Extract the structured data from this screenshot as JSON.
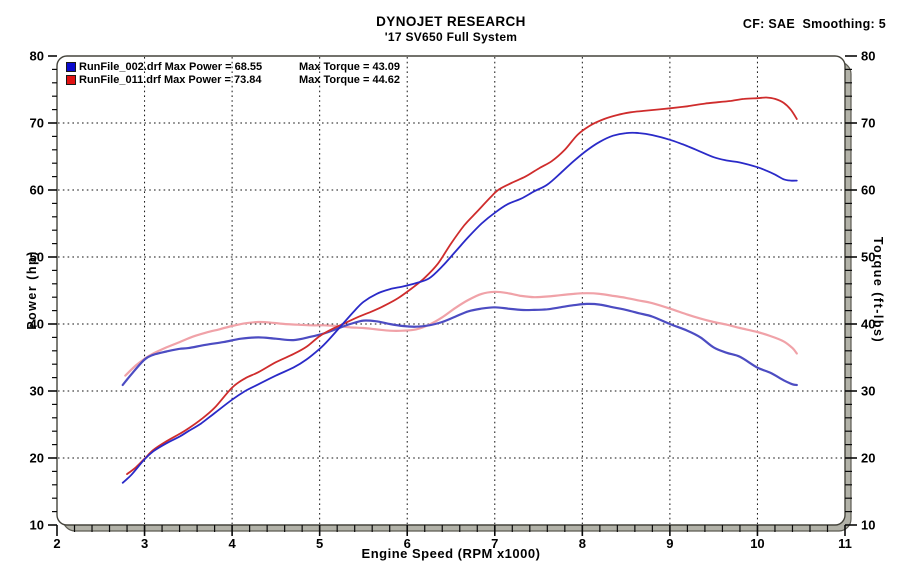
{
  "header": {
    "cf_smoothing": "CF: SAE  Smoothing: 5"
  },
  "chart_data": {
    "type": "line",
    "title": "DYNOJET RESEARCH",
    "subtitle": "'17 SV650 Full System",
    "xlabel": "Engine Speed (RPM x1000)",
    "ylabel_left": "Power (hp)",
    "ylabel_right": "Torque (ft-lbs)",
    "xlim": [
      2,
      11
    ],
    "ylim": [
      10,
      80
    ],
    "x_ticks": [
      2,
      3,
      4,
      5,
      6,
      7,
      8,
      9,
      10,
      11
    ],
    "y_ticks": [
      10,
      20,
      30,
      40,
      50,
      60,
      70,
      80
    ],
    "x_minor_step": 0.2,
    "y_minor_step": 2,
    "grid": "dotted",
    "legend_position": "top-left",
    "legend": [
      {
        "swatch": "#0a0acf",
        "label_left": "RunFile_002.drf Max Power = 68.55",
        "label_right": "Max Torque = 43.09",
        "max_power": 68.55,
        "max_torque": 43.09
      },
      {
        "swatch": "#e01212",
        "label_left": "RunFile_011.drf Max Power = 73.84",
        "label_right": "Max Torque = 44.62",
        "max_power": 73.84,
        "max_torque": 44.62
      }
    ],
    "series": [
      {
        "key": "curve-runfile011-torque",
        "name": "RunFile_011 Torque (ft-lbs)",
        "color": "#f0a2a8",
        "width": 2.2,
        "axis": "right",
        "points": [
          [
            2.78,
            32.3
          ],
          [
            2.9,
            33.8
          ],
          [
            3.0,
            34.8
          ],
          [
            3.1,
            35.6
          ],
          [
            3.25,
            36.5
          ],
          [
            3.4,
            37.3
          ],
          [
            3.55,
            38.1
          ],
          [
            3.7,
            38.7
          ],
          [
            3.85,
            39.2
          ],
          [
            4.0,
            39.7
          ],
          [
            4.15,
            40.1
          ],
          [
            4.3,
            40.3
          ],
          [
            4.45,
            40.2
          ],
          [
            4.6,
            40.0
          ],
          [
            4.75,
            39.9
          ],
          [
            4.9,
            39.8
          ],
          [
            5.05,
            39.8
          ],
          [
            5.2,
            39.7
          ],
          [
            5.35,
            39.5
          ],
          [
            5.5,
            39.4
          ],
          [
            5.65,
            39.2
          ],
          [
            5.8,
            39.0
          ],
          [
            5.95,
            39.0
          ],
          [
            6.1,
            39.2
          ],
          [
            6.25,
            39.9
          ],
          [
            6.4,
            41.0
          ],
          [
            6.55,
            42.4
          ],
          [
            6.7,
            43.6
          ],
          [
            6.85,
            44.5
          ],
          [
            7.0,
            44.8
          ],
          [
            7.15,
            44.6
          ],
          [
            7.3,
            44.2
          ],
          [
            7.45,
            44.0
          ],
          [
            7.6,
            44.1
          ],
          [
            7.75,
            44.3
          ],
          [
            7.9,
            44.5
          ],
          [
            8.05,
            44.6
          ],
          [
            8.2,
            44.5
          ],
          [
            8.35,
            44.2
          ],
          [
            8.5,
            43.9
          ],
          [
            8.65,
            43.5
          ],
          [
            8.8,
            43.1
          ],
          [
            9.0,
            42.3
          ],
          [
            9.2,
            41.4
          ],
          [
            9.35,
            40.8
          ],
          [
            9.5,
            40.3
          ],
          [
            9.65,
            39.9
          ],
          [
            9.8,
            39.4
          ],
          [
            10.0,
            38.8
          ],
          [
            10.15,
            38.2
          ],
          [
            10.3,
            37.4
          ],
          [
            10.4,
            36.4
          ],
          [
            10.45,
            35.6
          ]
        ]
      },
      {
        "key": "curve-runfile002-torque",
        "name": "RunFile_002 Torque (ft-lbs)",
        "color": "#4c4cc2",
        "width": 2.2,
        "axis": "right",
        "points": [
          [
            2.75,
            30.9
          ],
          [
            2.85,
            32.5
          ],
          [
            3.0,
            34.7
          ],
          [
            3.1,
            35.4
          ],
          [
            3.25,
            35.9
          ],
          [
            3.4,
            36.3
          ],
          [
            3.5,
            36.4
          ],
          [
            3.7,
            36.9
          ],
          [
            3.9,
            37.3
          ],
          [
            4.1,
            37.8
          ],
          [
            4.3,
            38.0
          ],
          [
            4.5,
            37.8
          ],
          [
            4.7,
            37.6
          ],
          [
            4.9,
            38.1
          ],
          [
            5.05,
            38.6
          ],
          [
            5.2,
            39.3
          ],
          [
            5.35,
            40.0
          ],
          [
            5.5,
            40.5
          ],
          [
            5.65,
            40.4
          ],
          [
            5.8,
            40.0
          ],
          [
            5.95,
            39.7
          ],
          [
            6.1,
            39.6
          ],
          [
            6.25,
            39.8
          ],
          [
            6.4,
            40.3
          ],
          [
            6.55,
            41.1
          ],
          [
            6.7,
            41.9
          ],
          [
            6.85,
            42.3
          ],
          [
            7.0,
            42.5
          ],
          [
            7.15,
            42.3
          ],
          [
            7.3,
            42.1
          ],
          [
            7.45,
            42.1
          ],
          [
            7.6,
            42.2
          ],
          [
            7.75,
            42.5
          ],
          [
            7.9,
            42.8
          ],
          [
            8.05,
            43.0
          ],
          [
            8.2,
            42.9
          ],
          [
            8.35,
            42.5
          ],
          [
            8.5,
            42.1
          ],
          [
            8.65,
            41.6
          ],
          [
            8.8,
            41.1
          ],
          [
            9.0,
            40.0
          ],
          [
            9.2,
            39.0
          ],
          [
            9.35,
            38.0
          ],
          [
            9.5,
            36.5
          ],
          [
            9.65,
            35.7
          ],
          [
            9.8,
            35.1
          ],
          [
            10.0,
            33.5
          ],
          [
            10.15,
            32.7
          ],
          [
            10.3,
            31.6
          ],
          [
            10.4,
            31.0
          ],
          [
            10.45,
            30.9
          ]
        ]
      },
      {
        "key": "curve-runfile011-power",
        "name": "RunFile_011 Power (hp)",
        "color": "#cf2c2c",
        "width": 1.8,
        "axis": "left",
        "points": [
          [
            2.8,
            17.6
          ],
          [
            2.9,
            18.6
          ],
          [
            3.0,
            19.9
          ],
          [
            3.1,
            21.2
          ],
          [
            3.25,
            22.5
          ],
          [
            3.4,
            23.6
          ],
          [
            3.5,
            24.4
          ],
          [
            3.65,
            25.8
          ],
          [
            3.8,
            27.5
          ],
          [
            4.0,
            30.5
          ],
          [
            4.15,
            31.9
          ],
          [
            4.3,
            32.8
          ],
          [
            4.5,
            34.3
          ],
          [
            4.7,
            35.5
          ],
          [
            4.85,
            36.6
          ],
          [
            5.0,
            38.2
          ],
          [
            5.15,
            39.3
          ],
          [
            5.3,
            40.2
          ],
          [
            5.45,
            41.1
          ],
          [
            5.6,
            41.9
          ],
          [
            5.75,
            42.8
          ],
          [
            5.9,
            43.9
          ],
          [
            6.05,
            45.3
          ],
          [
            6.2,
            46.9
          ],
          [
            6.35,
            49.0
          ],
          [
            6.5,
            52.0
          ],
          [
            6.65,
            54.7
          ],
          [
            6.8,
            56.8
          ],
          [
            6.95,
            58.9
          ],
          [
            7.05,
            60.1
          ],
          [
            7.2,
            61.1
          ],
          [
            7.35,
            62.0
          ],
          [
            7.5,
            63.2
          ],
          [
            7.65,
            64.3
          ],
          [
            7.8,
            66.0
          ],
          [
            7.95,
            68.3
          ],
          [
            8.1,
            69.7
          ],
          [
            8.25,
            70.6
          ],
          [
            8.4,
            71.2
          ],
          [
            8.55,
            71.6
          ],
          [
            8.7,
            71.8
          ],
          [
            8.85,
            72.0
          ],
          [
            9.0,
            72.2
          ],
          [
            9.2,
            72.5
          ],
          [
            9.4,
            72.9
          ],
          [
            9.55,
            73.1
          ],
          [
            9.7,
            73.3
          ],
          [
            9.85,
            73.6
          ],
          [
            10.0,
            73.7
          ],
          [
            10.1,
            73.8
          ],
          [
            10.2,
            73.6
          ],
          [
            10.3,
            73.0
          ],
          [
            10.38,
            72.0
          ],
          [
            10.45,
            70.6
          ]
        ]
      },
      {
        "key": "curve-runfile002-power",
        "name": "RunFile_002 Power (hp)",
        "color": "#2a2ac8",
        "width": 1.8,
        "axis": "left",
        "points": [
          [
            2.75,
            16.3
          ],
          [
            2.85,
            17.5
          ],
          [
            3.0,
            19.8
          ],
          [
            3.1,
            21.0
          ],
          [
            3.25,
            22.2
          ],
          [
            3.4,
            23.2
          ],
          [
            3.5,
            24.0
          ],
          [
            3.65,
            25.2
          ],
          [
            3.8,
            26.7
          ],
          [
            4.0,
            28.7
          ],
          [
            4.15,
            30.0
          ],
          [
            4.3,
            31.0
          ],
          [
            4.5,
            32.3
          ],
          [
            4.7,
            33.5
          ],
          [
            4.85,
            34.7
          ],
          [
            5.0,
            36.3
          ],
          [
            5.1,
            37.6
          ],
          [
            5.25,
            39.8
          ],
          [
            5.4,
            42.0
          ],
          [
            5.5,
            43.3
          ],
          [
            5.65,
            44.5
          ],
          [
            5.8,
            45.2
          ],
          [
            5.95,
            45.6
          ],
          [
            6.1,
            46.1
          ],
          [
            6.25,
            46.8
          ],
          [
            6.4,
            48.6
          ],
          [
            6.55,
            50.8
          ],
          [
            6.7,
            53.0
          ],
          [
            6.85,
            55.0
          ],
          [
            7.0,
            56.6
          ],
          [
            7.15,
            57.9
          ],
          [
            7.3,
            58.7
          ],
          [
            7.45,
            59.8
          ],
          [
            7.6,
            60.8
          ],
          [
            7.75,
            62.5
          ],
          [
            7.9,
            64.3
          ],
          [
            8.05,
            65.9
          ],
          [
            8.2,
            67.2
          ],
          [
            8.35,
            68.1
          ],
          [
            8.5,
            68.5
          ],
          [
            8.65,
            68.5
          ],
          [
            8.8,
            68.2
          ],
          [
            9.0,
            67.5
          ],
          [
            9.15,
            66.8
          ],
          [
            9.3,
            66.0
          ],
          [
            9.5,
            64.9
          ],
          [
            9.65,
            64.4
          ],
          [
            9.8,
            64.1
          ],
          [
            10.0,
            63.4
          ],
          [
            10.1,
            62.9
          ],
          [
            10.2,
            62.3
          ],
          [
            10.3,
            61.6
          ],
          [
            10.38,
            61.4
          ],
          [
            10.45,
            61.4
          ]
        ]
      }
    ]
  }
}
